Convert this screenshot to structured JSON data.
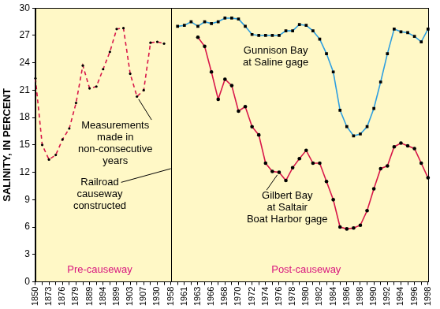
{
  "chart_data": {
    "type": "line",
    "y_label": "SALINITY, IN PERCENT",
    "ylim": [
      0,
      30
    ],
    "yticks": [
      0,
      3,
      6,
      9,
      12,
      15,
      18,
      21,
      24,
      27,
      30
    ],
    "grid": false,
    "categories": [
      "1850",
      null,
      "1873",
      null,
      "1876",
      null,
      "1879",
      null,
      "1889",
      null,
      "1894",
      null,
      "1899",
      null,
      "1903",
      null,
      "1907",
      null,
      "1930",
      null,
      "1958",
      null,
      "1961",
      null,
      "1963",
      null,
      "1966",
      null,
      "1968",
      null,
      "1970",
      null,
      "1972",
      null,
      "1974",
      null,
      "1976",
      null,
      "1978",
      null,
      "1980",
      null,
      "1982",
      null,
      "1984",
      null,
      "1986",
      null,
      "1988",
      null,
      "1990",
      null,
      "1992",
      null,
      "1994",
      null,
      "1996",
      null,
      "1998"
    ],
    "series": [
      {
        "name": "Measurements\nmade in\nnon-consecutive\nyears",
        "color": "#d8174a",
        "line_style": "dashed",
        "marker": "circle",
        "values": [
          22.3,
          15.0,
          13.4,
          13.9,
          15.6,
          16.8,
          19.6,
          23.7,
          21.2,
          21.4,
          23.3,
          25.2,
          27.7,
          27.8,
          22.8,
          20.3,
          21.0,
          26.2,
          26.3,
          26.1,
          null,
          null,
          null,
          null,
          null,
          null,
          null,
          null,
          null,
          null,
          null,
          null,
          null,
          null,
          null,
          null,
          null,
          null,
          null,
          null,
          null,
          null,
          null,
          null,
          null,
          null,
          null,
          null,
          null,
          null,
          null,
          null,
          null,
          null,
          null,
          null,
          null,
          null,
          null
        ]
      },
      {
        "name": "Gunnison Bay\nat Saline gage",
        "color": "#2e9fe0",
        "line_style": "solid",
        "marker": "square",
        "values": [
          null,
          null,
          null,
          null,
          null,
          null,
          null,
          null,
          null,
          null,
          null,
          null,
          null,
          null,
          null,
          null,
          null,
          null,
          null,
          null,
          null,
          28.0,
          28.1,
          28.5,
          28.0,
          28.5,
          28.3,
          28.5,
          28.9,
          28.9,
          28.8,
          28.0,
          27.1,
          27.0,
          27.0,
          27.0,
          27.0,
          27.5,
          27.5,
          28.2,
          28.1,
          27.5,
          26.6,
          25.0,
          23.0,
          18.8,
          17.0,
          16.0,
          16.2,
          17.0,
          19.0,
          21.9,
          25.0,
          27.7,
          27.4,
          27.3,
          26.9,
          26.3,
          27.7
        ]
      },
      {
        "name": "Gilbert Bay\nat Saltair\nBoat Harbor gage",
        "color": "#d8174a",
        "line_style": "solid",
        "marker": "circle",
        "values": [
          null,
          null,
          null,
          null,
          null,
          null,
          null,
          null,
          null,
          null,
          null,
          null,
          null,
          null,
          null,
          null,
          null,
          null,
          null,
          null,
          null,
          null,
          null,
          null,
          26.8,
          25.8,
          23.0,
          20.0,
          22.2,
          21.5,
          18.7,
          19.2,
          17.0,
          16.1,
          13.0,
          12.1,
          12.0,
          11.1,
          12.5,
          13.5,
          14.4,
          13.0,
          13.0,
          11.0,
          9.0,
          6.0,
          5.8,
          5.9,
          6.2,
          7.8,
          10.2,
          12.4,
          12.7,
          14.8,
          15.2,
          14.9,
          14.6,
          13.0,
          11.4
        ]
      }
    ],
    "annotations": [
      {
        "text": "Railroad\ncauseway\nconstructed"
      },
      {
        "text": "Pre-causeway"
      },
      {
        "text": "Post-causeway"
      }
    ]
  }
}
